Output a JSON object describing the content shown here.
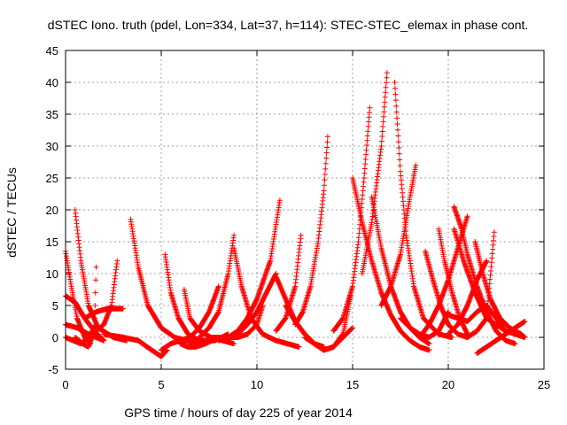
{
  "chart_data": {
    "type": "scatter",
    "title": "dSTEC Iono. truth (pdel, Lon=334, Lat=37, h=114): STEC-STEC_elemax in phase cont.",
    "xlabel": "GPS time / hours of day 225 of year 2014",
    "ylabel": "dSTEC  / TECUs",
    "xlim": [
      0,
      25
    ],
    "ylim": [
      -5,
      45
    ],
    "xticks": [
      0,
      5,
      10,
      15,
      20,
      25
    ],
    "yticks": [
      -5,
      0,
      5,
      10,
      15,
      20,
      25,
      30,
      35,
      40,
      45
    ],
    "grid": true,
    "marker": "+",
    "color": "#ff0000",
    "series": [
      {
        "x": [
          0.0,
          0.3,
          0.6,
          1.0,
          1.3
        ],
        "y": [
          13.5,
          8,
          3,
          0,
          -1
        ]
      },
      {
        "x": [
          0.0,
          0.5,
          1.0,
          1.5,
          2.0
        ],
        "y": [
          6.5,
          5.5,
          3,
          1,
          -0.5
        ]
      },
      {
        "x": [
          0.0,
          0.6,
          1.2,
          2.0
        ],
        "y": [
          2,
          1.5,
          0.5,
          -0.5
        ]
      },
      {
        "x": [
          0.5,
          0.8,
          1.2,
          1.7,
          2.5,
          3.2
        ],
        "y": [
          20,
          12,
          5,
          1.5,
          0,
          -0.5
        ]
      },
      {
        "x": [
          0.0,
          0.4,
          0.8,
          1.2,
          1.6
        ],
        "y": [
          0,
          -0.5,
          -1,
          0,
          2
        ]
      },
      {
        "x": [
          0.5,
          0.9,
          1.2,
          1.5,
          1.6
        ],
        "y": [
          0,
          -1,
          -1.5,
          1,
          11
        ]
      },
      {
        "x": [
          1.2,
          1.6,
          2.0,
          2.4,
          2.7
        ],
        "y": [
          0,
          1,
          2,
          5,
          12
        ]
      },
      {
        "x": [
          1.0,
          1.6,
          2.2,
          3.0
        ],
        "y": [
          3,
          4,
          4.5,
          4.5
        ]
      },
      {
        "x": [
          3.4,
          3.8,
          4.3,
          5.0,
          5.7,
          6.3,
          7.0
        ],
        "y": [
          18.5,
          11,
          5,
          1.5,
          0,
          -0.5,
          -1
        ]
      },
      {
        "x": [
          2.0,
          3.0,
          3.8,
          4.5,
          5.0,
          5.3
        ],
        "y": [
          0.5,
          0,
          -0.5,
          -2,
          -3,
          -2
        ]
      },
      {
        "x": [
          5.2,
          5.5,
          5.9,
          6.4,
          7.0,
          7.8,
          8.5
        ],
        "y": [
          13,
          7,
          3,
          0.5,
          -0.5,
          -0.5,
          0.5
        ]
      },
      {
        "x": [
          5.0,
          5.5,
          6.0,
          6.5,
          7.0,
          7.5,
          8.0
        ],
        "y": [
          -2,
          -1,
          -0.5,
          0,
          1.5,
          4,
          8
        ]
      },
      {
        "x": [
          6.2,
          6.5,
          7.0,
          7.6,
          8.2,
          8.8
        ],
        "y": [
          7.5,
          3,
          1,
          0,
          -0.5,
          -1
        ]
      },
      {
        "x": [
          6.0,
          6.4,
          6.8,
          7.3,
          8.0
        ],
        "y": [
          -1,
          -1.5,
          -1.5,
          -1,
          0
        ]
      },
      {
        "x": [
          7.5,
          8.0,
          8.5,
          9.0,
          9.5,
          10.0,
          10.3
        ],
        "y": [
          0,
          0,
          0,
          0,
          0.5,
          2,
          5
        ]
      },
      {
        "x": [
          7.0,
          7.5,
          8.0,
          8.5,
          8.8
        ],
        "y": [
          0,
          1.5,
          4,
          10,
          16
        ]
      },
      {
        "x": [
          8.0,
          8.5,
          9.0,
          9.5,
          10.0,
          10.7,
          11.2
        ],
        "y": [
          -0.5,
          0,
          1,
          3,
          6,
          12,
          21.5
        ]
      },
      {
        "x": [
          8.5,
          9.0,
          9.5,
          10.0,
          10.5,
          11.0
        ],
        "y": [
          0,
          0.5,
          2,
          4,
          7,
          10
        ]
      },
      {
        "x": [
          8.8,
          9.2,
          9.7,
          10.3,
          11.0,
          11.6,
          12.2
        ],
        "y": [
          14,
          8,
          3,
          0.5,
          -0.5,
          -1,
          -1.5
        ]
      },
      {
        "x": [
          11.0,
          11.5,
          12.0,
          12.5,
          13.0,
          13.5
        ],
        "y": [
          9.5,
          6,
          2.5,
          0.5,
          -1,
          -1.5
        ]
      },
      {
        "x": [
          11.0,
          11.5,
          12.0,
          12.3
        ],
        "y": [
          1,
          3,
          8,
          16
        ]
      },
      {
        "x": [
          11.5,
          12.0,
          12.5,
          13.0,
          13.5,
          14.0,
          14.5,
          15.0
        ],
        "y": [
          5,
          2.5,
          0.5,
          -1,
          -2,
          -1.5,
          0,
          1.5
        ]
      },
      {
        "x": [
          12.0,
          12.4,
          12.8,
          13.2,
          13.5,
          13.7
        ],
        "y": [
          2,
          4,
          8,
          15,
          23,
          31.5
        ]
      },
      {
        "x": [
          12.5,
          13.0,
          13.5,
          14.0,
          14.5,
          14.9
        ],
        "y": [
          0,
          -1,
          -2,
          -1.5,
          0.5,
          6.5
        ]
      },
      {
        "x": [
          15.0,
          15.5,
          16.0,
          16.5,
          17.0,
          17.5,
          18.0,
          18.5,
          19.0
        ],
        "y": [
          25,
          18,
          12,
          7,
          3.5,
          1,
          -0.5,
          -1.5,
          -2
        ]
      },
      {
        "x": [
          14.0,
          14.5,
          15.0,
          15.3,
          15.6,
          15.9
        ],
        "y": [
          1,
          3,
          8,
          15,
          25,
          36
        ]
      },
      {
        "x": [
          15.5,
          16.0,
          16.5,
          16.8
        ],
        "y": [
          10,
          18,
          30,
          41.5
        ]
      },
      {
        "x": [
          16.0,
          16.5,
          17.0,
          17.5,
          18.0,
          18.5,
          19.0
        ],
        "y": [
          22,
          14,
          8,
          4,
          1.5,
          0,
          -1
        ]
      },
      {
        "x": [
          17.2,
          17.5,
          17.8,
          18.2,
          18.7,
          19.5,
          20.2
        ],
        "y": [
          40,
          26,
          16,
          8,
          3,
          0.5,
          0
        ]
      },
      {
        "x": [
          16.5,
          17.0,
          17.5,
          18.0,
          18.3
        ],
        "y": [
          5,
          8,
          13,
          22,
          27
        ]
      },
      {
        "x": [
          17.5,
          18.0,
          18.5,
          19.0,
          19.5,
          20.0
        ],
        "y": [
          3,
          1.5,
          0.5,
          0,
          1,
          4
        ]
      },
      {
        "x": [
          18.8,
          19.2,
          19.6,
          20.0,
          20.5,
          21.0
        ],
        "y": [
          13.5,
          9,
          5,
          2,
          0.5,
          0
        ]
      },
      {
        "x": [
          19.5,
          19.8,
          20.2,
          20.6,
          21.0
        ],
        "y": [
          17,
          12,
          7,
          3,
          0.5
        ]
      },
      {
        "x": [
          18.5,
          19.0,
          19.5,
          20.0,
          20.5,
          21.0
        ],
        "y": [
          0,
          2,
          5,
          9,
          14,
          19
        ]
      },
      {
        "x": [
          20.3,
          20.7,
          21.0,
          21.5,
          22.0,
          22.5,
          23.0,
          23.5
        ],
        "y": [
          20.5,
          17,
          13,
          8,
          4,
          1,
          -0.5,
          -1
        ]
      },
      {
        "x": [
          20.3,
          20.8,
          21.4,
          22.0
        ],
        "y": [
          17,
          12,
          7,
          3
        ]
      },
      {
        "x": [
          20.0,
          20.5,
          21.0,
          21.5,
          22.0
        ],
        "y": [
          0.5,
          2,
          5,
          9,
          12
        ]
      },
      {
        "x": [
          21.4,
          21.8,
          22.2,
          22.7,
          23.2,
          23.8,
          24.0
        ],
        "y": [
          15,
          10,
          6,
          3,
          1.5,
          0.5,
          0
        ]
      },
      {
        "x": [
          21.0,
          21.5,
          22.0,
          22.4
        ],
        "y": [
          0,
          1,
          3,
          16.5
        ]
      },
      {
        "x": [
          21.5,
          22.0,
          22.5,
          23.0,
          23.5,
          24.0
        ],
        "y": [
          -2.5,
          -1.5,
          -0.5,
          0.5,
          1.5,
          2.5
        ]
      },
      {
        "x": [
          22.0,
          22.5,
          23.0,
          23.5,
          24.0
        ],
        "y": [
          3,
          2,
          1,
          0.5,
          0
        ]
      },
      {
        "x": [
          20.0,
          20.5,
          21.0,
          21.5,
          22.0,
          22.5,
          23.0
        ],
        "y": [
          3.5,
          3,
          2.5,
          4,
          5,
          3,
          1
        ]
      }
    ]
  }
}
